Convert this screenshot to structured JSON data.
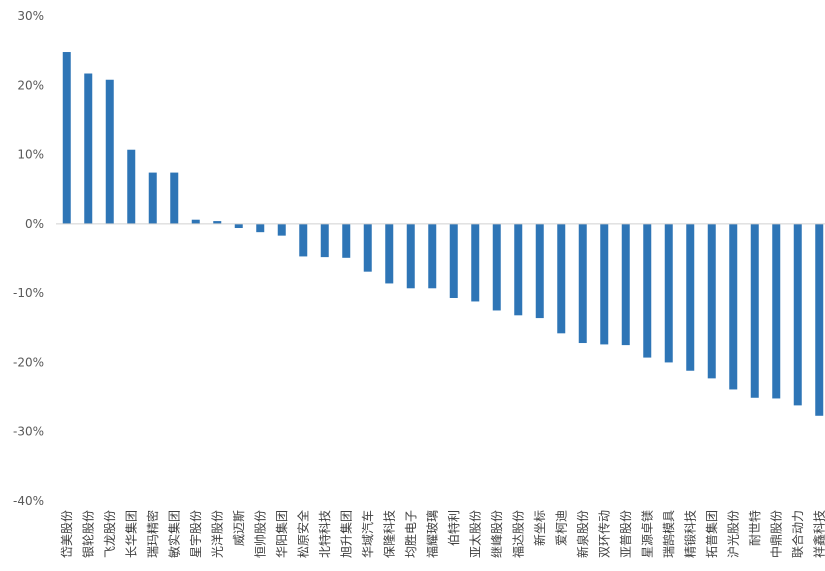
{
  "chart_data": {
    "type": "bar",
    "title": "",
    "xlabel": "",
    "ylabel": "",
    "ylim": [
      -40,
      30
    ],
    "yticks": [
      "30%",
      "20%",
      "10%",
      "0%",
      "-10%",
      "-20%",
      "-30%",
      "-40%"
    ],
    "grid": false,
    "legend": "none",
    "bar_color": "#2E75B6",
    "categories": [
      "岱美股份",
      "银轮股份",
      "飞龙股份",
      "长华集团",
      "瑞玛精密",
      "敏实集团",
      "星宇股份",
      "光洋股份",
      "威迈斯",
      "恒帅股份",
      "华阳集团",
      "松原安全",
      "北特科技",
      "旭升集团",
      "华域汽车",
      "保隆科技",
      "均胜电子",
      "福耀玻璃",
      "伯特利",
      "亚太股份",
      "继峰股份",
      "福达股份",
      "新坐标",
      "爱柯迪",
      "新泉股份",
      "双环传动",
      "亚普股份",
      "星源卓镁",
      "瑞鹄模具",
      "精锻科技",
      "拓普集团",
      "沪光股份",
      "耐世特",
      "中鼎股份",
      "联合动力",
      "祥鑫科技"
    ],
    "values": [
      24.8,
      21.7,
      20.8,
      10.7,
      7.4,
      7.4,
      0.6,
      0.4,
      -0.6,
      -1.2,
      -1.7,
      -4.7,
      -4.8,
      -4.9,
      -6.9,
      -8.6,
      -9.3,
      -9.3,
      -10.7,
      -11.2,
      -12.5,
      -13.2,
      -13.6,
      -15.8,
      -17.2,
      -17.4,
      -17.5,
      -19.3,
      -20.0,
      -21.2,
      -22.3,
      -23.9,
      -25.1,
      -25.2,
      -26.2,
      -27.7
    ]
  }
}
